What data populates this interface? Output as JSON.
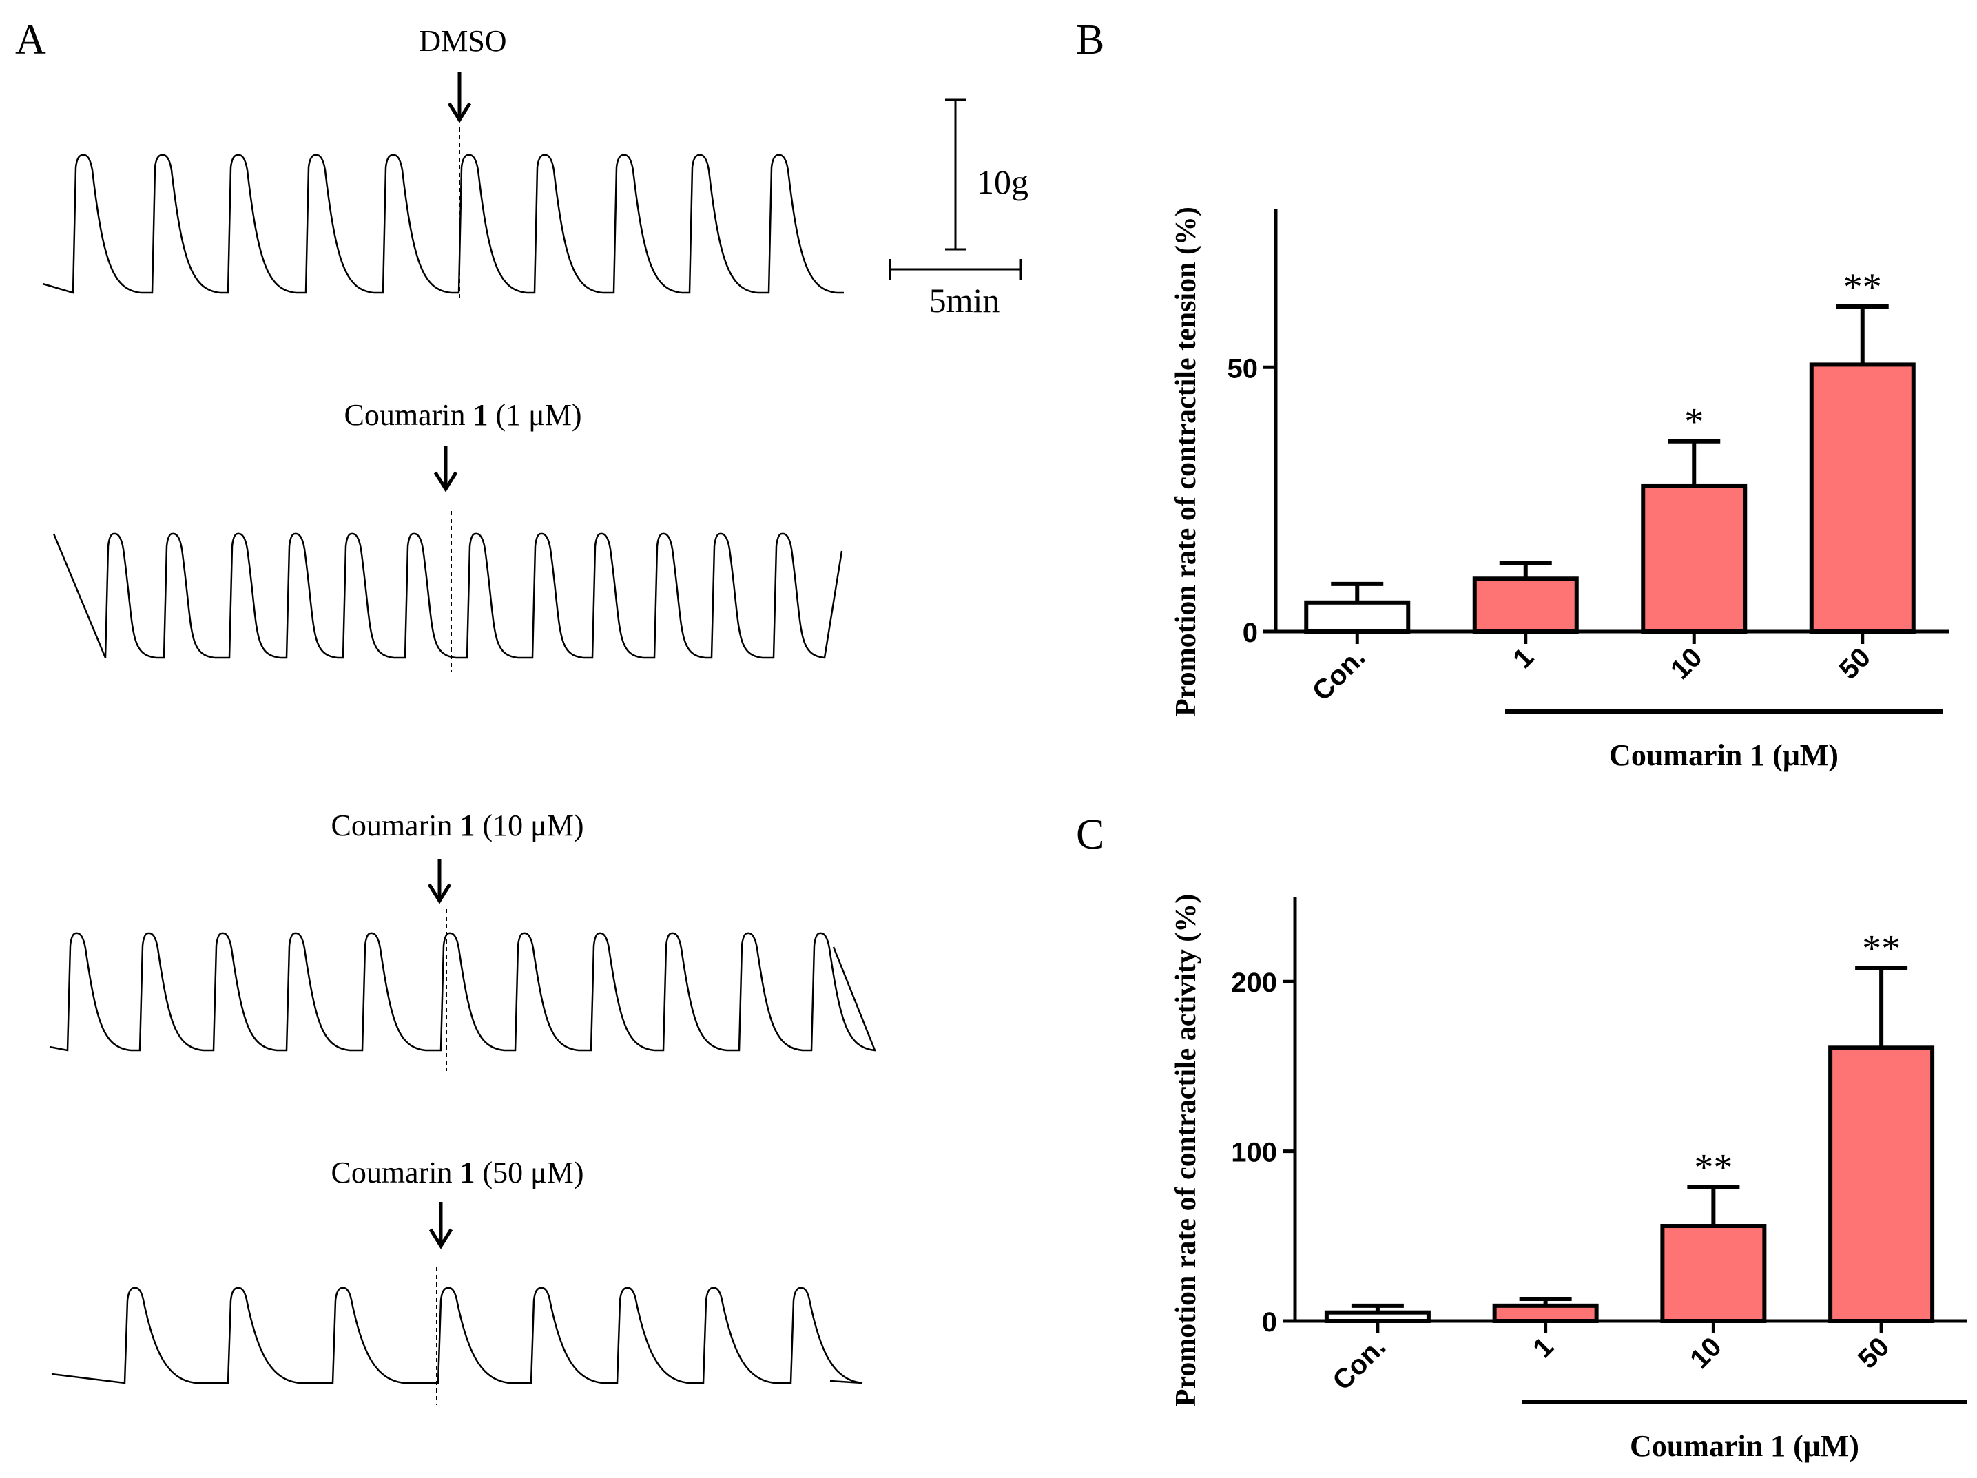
{
  "panel_a": {
    "label": "A",
    "traces": [
      {
        "name": "DMSO",
        "label": "DMSO",
        "compound": "",
        "bold_id": "",
        "conc": ""
      },
      {
        "name": "1uM",
        "label": "",
        "compound": "Coumarin ",
        "bold_id": "1",
        "conc": " (1 μM)"
      },
      {
        "name": "10uM",
        "label": "",
        "compound": "Coumarin ",
        "bold_id": "1",
        "conc": " (10 μM)"
      },
      {
        "name": "50uM",
        "label": "",
        "compound": "Coumarin ",
        "bold_id": "1",
        "conc": " (50 μM)"
      }
    ],
    "scale_bar": {
      "force_label": "10g",
      "time_label": "5min"
    }
  },
  "chart_data": [
    {
      "panel": "B",
      "type": "bar",
      "title": "",
      "ylabel": "Promotion rate of contractile tension (%)",
      "xlabel": "Coumarin 1 (μM)",
      "categories": [
        "Con.",
        "1",
        "10",
        "50"
      ],
      "values": [
        5.5,
        10,
        27.5,
        50.5
      ],
      "errors": [
        3.5,
        3,
        8.5,
        11
      ],
      "significance": [
        "",
        "",
        "*",
        "**"
      ],
      "colors": [
        "#ffffff",
        "#fe7373",
        "#fe7373",
        "#fe7373"
      ],
      "ylim": [
        0,
        80
      ],
      "yticks": [
        0,
        50
      ],
      "group_bar_categories": [
        "1",
        "10",
        "50"
      ]
    },
    {
      "panel": "C",
      "type": "bar",
      "title": "",
      "ylabel": "Promotion rate of contractile activity (%)",
      "xlabel": "Coumarin 1 (μM)",
      "categories": [
        "Con.",
        "1",
        "10",
        "50"
      ],
      "values": [
        5,
        9,
        56,
        161
      ],
      "errors": [
        4,
        4,
        23,
        47
      ],
      "significance": [
        "",
        "",
        "**",
        "**"
      ],
      "colors": [
        "#ffffff",
        "#fe7373",
        "#fe7373",
        "#fe7373"
      ],
      "ylim": [
        0,
        250
      ],
      "yticks": [
        0,
        100,
        200
      ],
      "group_bar_categories": [
        "1",
        "10",
        "50"
      ]
    }
  ]
}
